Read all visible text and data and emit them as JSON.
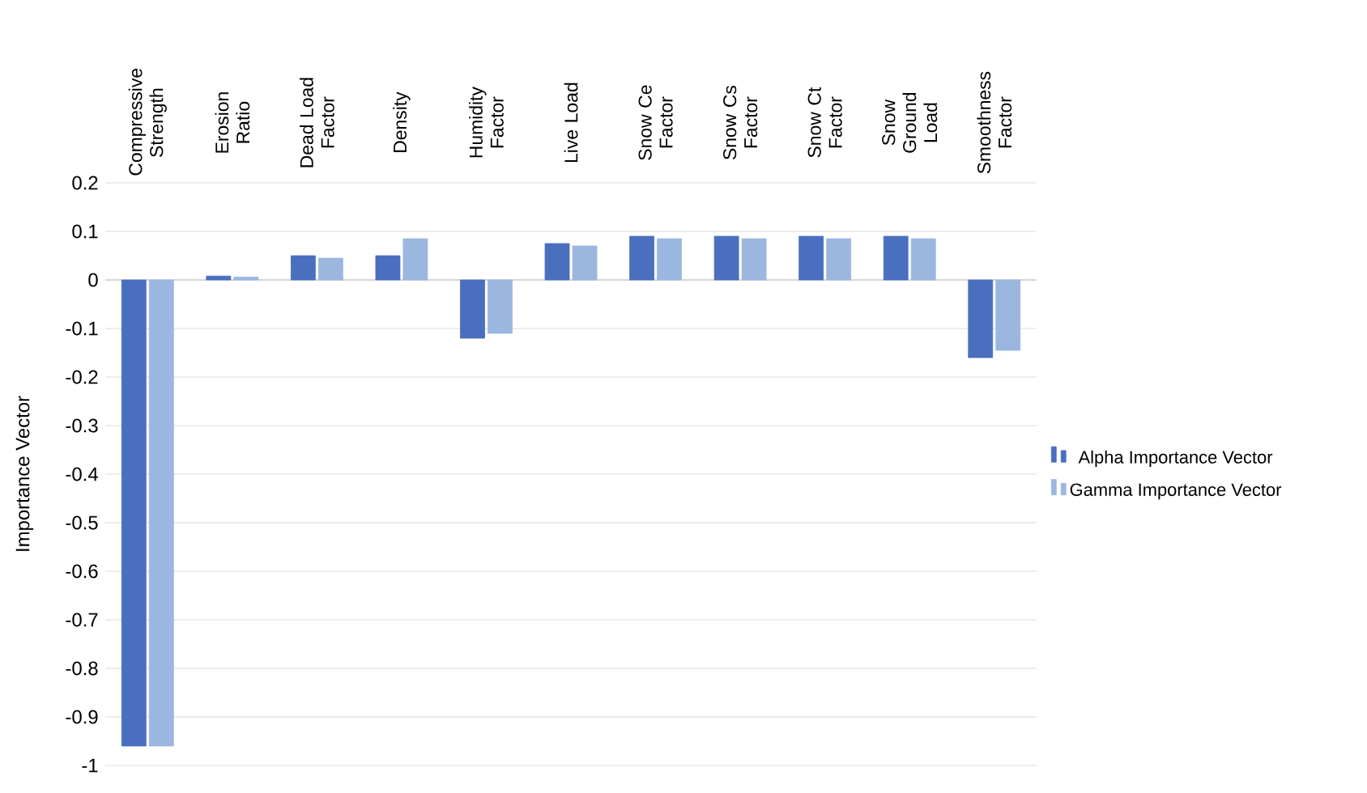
{
  "chart_data": {
    "type": "bar",
    "ylabel": "Importance Vector",
    "categories": [
      "Compressive Strength",
      "Erosion Ratio",
      "Dead Load Factor",
      "Density",
      "Humidity Factor",
      "Live Load",
      "Snow Ce Factor",
      "Snow Cs Factor",
      "Snow Ct Factor",
      "Snow Ground Load",
      "Smoothness Factor"
    ],
    "series": [
      {
        "name": "Alpha Importance Vector",
        "color": "#4a6fbf",
        "values": [
          -0.96,
          0.008,
          0.05,
          0.05,
          -0.12,
          0.075,
          0.09,
          0.09,
          0.09,
          0.09,
          -0.16
        ]
      },
      {
        "name": "Gamma Importance Vector",
        "color": "#9bb7e0",
        "values": [
          -0.96,
          0.006,
          0.045,
          0.085,
          -0.11,
          0.07,
          0.085,
          0.085,
          0.085,
          0.085,
          -0.145
        ]
      }
    ],
    "ylim": [
      -1,
      0.2
    ],
    "yticks": [
      -1,
      -0.9,
      -0.8,
      -0.7,
      -0.6,
      -0.5,
      -0.4,
      -0.3,
      -0.2,
      -0.1,
      0,
      0.1,
      0.2
    ],
    "grid": "y",
    "legend": "right"
  }
}
